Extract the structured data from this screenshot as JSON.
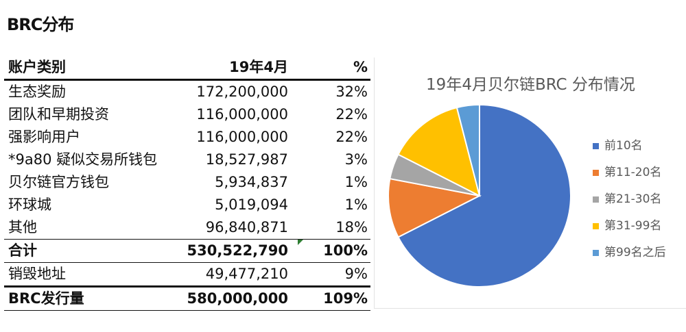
{
  "page_title": "BRC分布",
  "table": {
    "headers": [
      "账户类别",
      "19年4月",
      "%"
    ],
    "rows": [
      {
        "label": "生态奖励",
        "value": "172,200,000",
        "pct": "32%"
      },
      {
        "label": "团队和早期投资",
        "value": "116,000,000",
        "pct": "22%"
      },
      {
        "label": "强影响用户",
        "value": "116,000,000",
        "pct": "22%"
      },
      {
        "label": "*9a80 疑似交易所钱包",
        "value": "18,527,987",
        "pct": "3%"
      },
      {
        "label": "贝尔链官方钱包",
        "value": "5,934,837",
        "pct": "1%"
      },
      {
        "label": "环球城",
        "value": "5,019,094",
        "pct": "1%"
      },
      {
        "label": "其他",
        "value": "96,840,871",
        "pct": "18%"
      }
    ],
    "total": {
      "label": "合计",
      "value": "530,522,790",
      "pct": "100%"
    },
    "burn": {
      "label": "销毁地址",
      "value": "49,477,210",
      "pct": "9%"
    },
    "issued": {
      "label": "BRC发行量",
      "value": "580,000,000",
      "pct": "109%"
    }
  },
  "chart_data": {
    "type": "pie",
    "title": "19年4月贝尔链BRC 分布情况",
    "legend_position": "right",
    "series": [
      {
        "name": "前10名",
        "value": 67.5,
        "color": "#4472C4"
      },
      {
        "name": "第11-20名",
        "value": 10.5,
        "color": "#ED7D31"
      },
      {
        "name": "第21-30名",
        "value": 4.5,
        "color": "#A5A5A5"
      },
      {
        "name": "第31-99名",
        "value": 13.5,
        "color": "#FFC000"
      },
      {
        "name": "第99名之后",
        "value": 4.0,
        "color": "#5B9BD5"
      }
    ]
  }
}
